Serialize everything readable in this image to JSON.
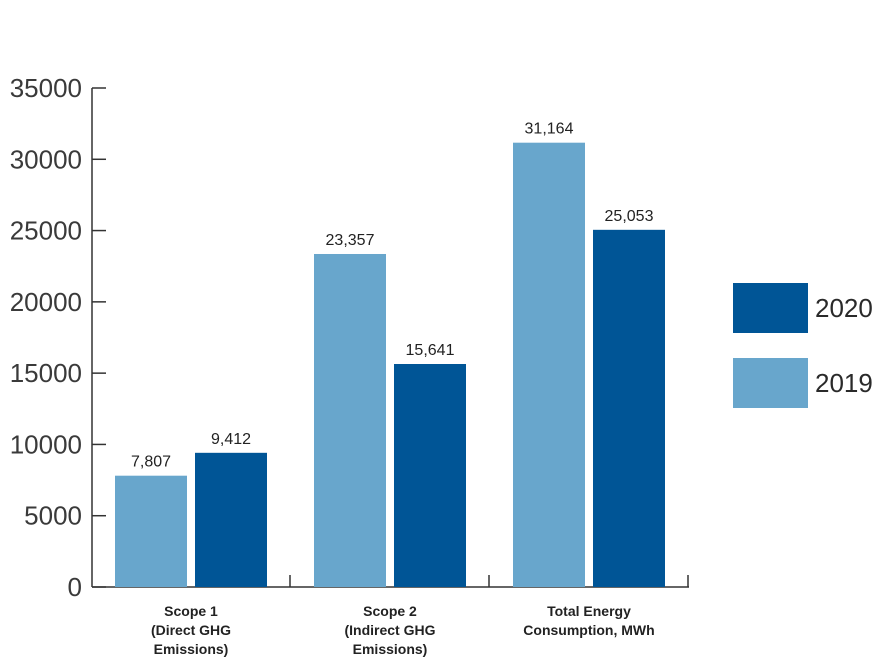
{
  "chart_data": {
    "type": "bar",
    "categories": [
      [
        "Scope 1",
        "(Direct GHG",
        "Emissions)"
      ],
      [
        "Scope 2",
        "(Indirect GHG",
        "Emissions)"
      ],
      [
        "Total Energy",
        "Consumption, MWh"
      ]
    ],
    "series": [
      {
        "name": "2019",
        "color": "#68a6cc",
        "values": [
          7807,
          23357,
          31164
        ],
        "labels": [
          "7,807",
          "23,357",
          "31,164"
        ]
      },
      {
        "name": "2020",
        "color": "#005596",
        "values": [
          9412,
          15641,
          25053
        ],
        "labels": [
          "9,412",
          "15,641",
          "25,053"
        ]
      }
    ],
    "legend_order": [
      "2020",
      "2019"
    ],
    "ylim": [
      0,
      35000
    ],
    "yticks": [
      0,
      5000,
      10000,
      15000,
      20000,
      25000,
      30000,
      35000
    ],
    "ytick_labels": [
      "0",
      "5000",
      "10000",
      "15000",
      "20000",
      "25000",
      "30000",
      "35000"
    ],
    "legend_position": "right",
    "grid": false,
    "title": "",
    "xlabel": "",
    "ylabel": ""
  }
}
